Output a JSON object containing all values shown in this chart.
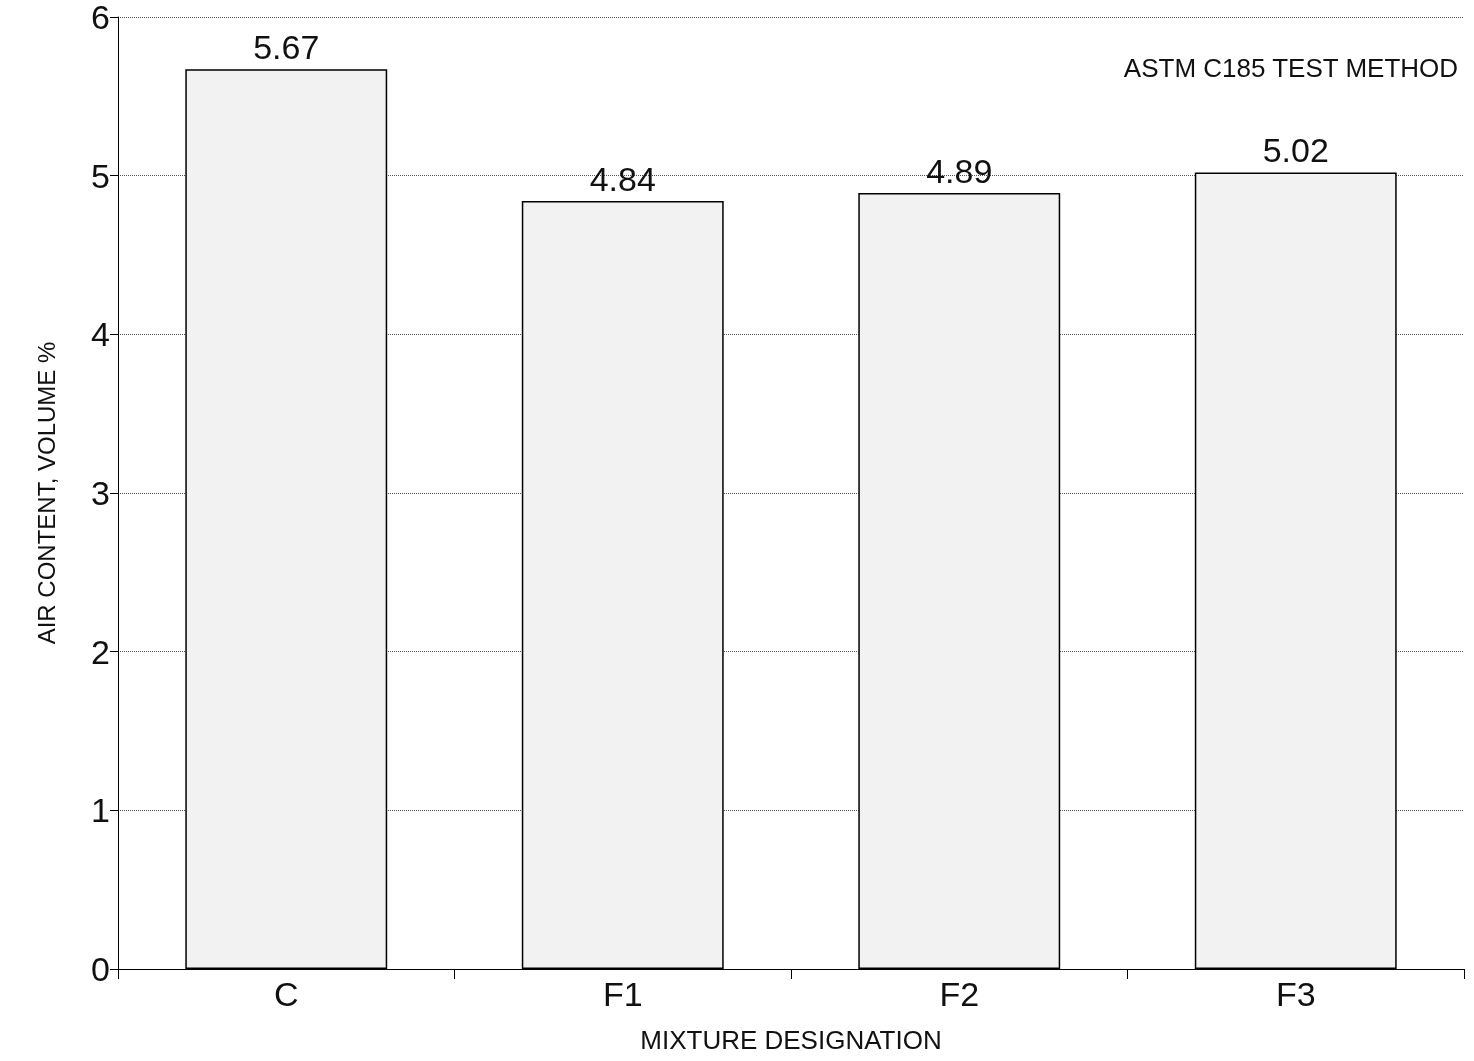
{
  "chart_data": {
    "type": "bar",
    "categories": [
      "C",
      "F1",
      "F2",
      "F3"
    ],
    "values": [
      5.67,
      4.84,
      4.89,
      5.02
    ],
    "color": "#f2f2f2",
    "ylim": [
      0,
      6
    ],
    "yticks": [
      0,
      1,
      2,
      3,
      4,
      5,
      6
    ],
    "grid": "y",
    "data_labels": true,
    "xlabel": "MIXTURE DESIGNATION",
    "ylabel": "AIR CONTENT, VOLUME %",
    "annotations": [
      "ASTM C185 TEST METHOD"
    ]
  }
}
